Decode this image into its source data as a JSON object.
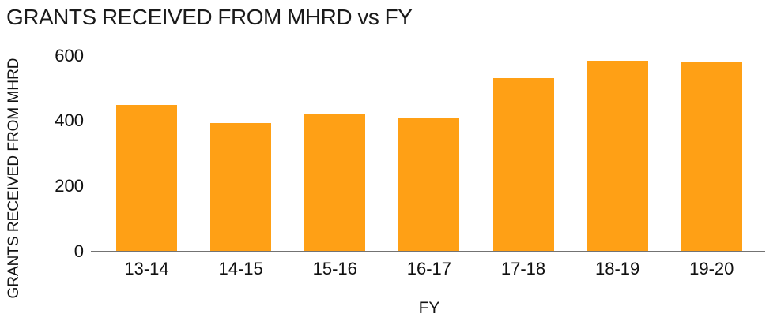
{
  "colors": {
    "bar": "#FFA015",
    "axis_line": "#737373",
    "text": "#1a1a1a",
    "background": "#ffffff"
  },
  "chart_data": {
    "type": "bar",
    "title": "GRANTS RECEIVED FROM MHRD vs FY",
    "xlabel": "FY",
    "ylabel": "GRANTS RECEIVED FROM MHRD",
    "categories": [
      "13-14",
      "14-15",
      "15-16",
      "16-17",
      "17-18",
      "18-19",
      "19-20"
    ],
    "values": [
      447,
      393,
      420,
      410,
      529,
      583,
      578
    ],
    "ylim": [
      0,
      600
    ],
    "yticks": [
      0,
      200,
      400,
      600
    ],
    "grid": false,
    "legend": false,
    "bar_color": "#FFA015"
  }
}
